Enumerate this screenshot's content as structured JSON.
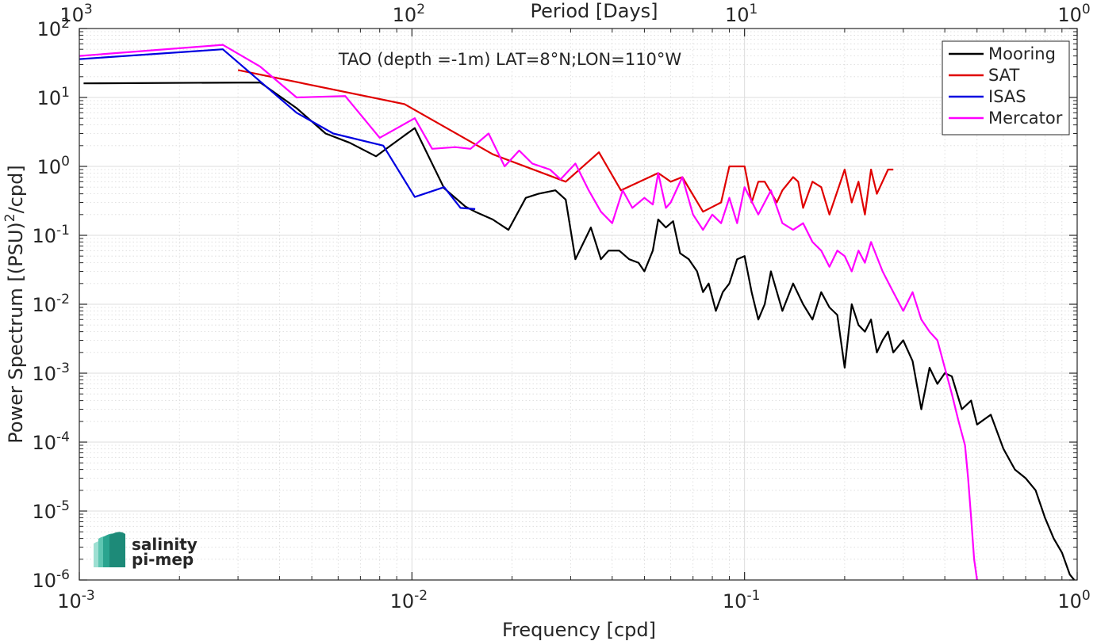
{
  "chart_data": {
    "type": "line",
    "title": "TAO (depth =-1m) LAT=8°N;LON=110°W",
    "xlabel": "Frequency [cpd]",
    "ylabel_main": "Power Spectrum [(PSU)",
    "ylabel_sup": "2",
    "ylabel_tail": "/cpd]",
    "top_xlabel": "Period [Days]",
    "xscale": "log",
    "yscale": "log",
    "xlim": [
      0.001,
      1
    ],
    "ylim": [
      1e-06,
      100
    ],
    "grid": true,
    "legend_location": "top-right",
    "x_ticks": [
      {
        "value": 0.001,
        "base": "10",
        "exp": "-3"
      },
      {
        "value": 0.01,
        "base": "10",
        "exp": "-2"
      },
      {
        "value": 0.1,
        "base": "10",
        "exp": "-1"
      },
      {
        "value": 1,
        "base": "10",
        "exp": "0"
      }
    ],
    "top_ticks": [
      {
        "value": 0.001,
        "base": "10",
        "exp": "3"
      },
      {
        "value": 0.01,
        "base": "10",
        "exp": "2"
      },
      {
        "value": 0.1,
        "base": "10",
        "exp": "1"
      },
      {
        "value": 1,
        "base": "10",
        "exp": "0"
      }
    ],
    "y_ticks": [
      {
        "value": 100,
        "base": "10",
        "exp": "2"
      },
      {
        "value": 10,
        "base": "10",
        "exp": "1"
      },
      {
        "value": 1,
        "base": "10",
        "exp": "0"
      },
      {
        "value": 0.1,
        "base": "10",
        "exp": "-1"
      },
      {
        "value": 0.01,
        "base": "10",
        "exp": "-2"
      },
      {
        "value": 0.001,
        "base": "10",
        "exp": "-3"
      },
      {
        "value": 0.0001,
        "base": "10",
        "exp": "-4"
      },
      {
        "value": 1e-05,
        "base": "10",
        "exp": "-5"
      },
      {
        "value": 1e-06,
        "base": "10",
        "exp": "-6"
      }
    ],
    "series": [
      {
        "name": "Mooring",
        "color": "#000000",
        "points": [
          [
            0.00103,
            16
          ],
          [
            0.0035,
            16.5
          ],
          [
            0.0045,
            7
          ],
          [
            0.0055,
            3
          ],
          [
            0.0065,
            2.2
          ],
          [
            0.0078,
            1.4
          ],
          [
            0.0085,
            1.9
          ],
          [
            0.0102,
            3.6
          ],
          [
            0.0125,
            0.48
          ],
          [
            0.0145,
            0.26
          ],
          [
            0.0155,
            0.22
          ],
          [
            0.0175,
            0.17
          ],
          [
            0.0195,
            0.12
          ],
          [
            0.022,
            0.35
          ],
          [
            0.024,
            0.4
          ],
          [
            0.027,
            0.45
          ],
          [
            0.029,
            0.33
          ],
          [
            0.031,
            0.045
          ],
          [
            0.0345,
            0.13
          ],
          [
            0.037,
            0.045
          ],
          [
            0.039,
            0.06
          ],
          [
            0.042,
            0.06
          ],
          [
            0.045,
            0.045
          ],
          [
            0.048,
            0.04
          ],
          [
            0.05,
            0.03
          ],
          [
            0.053,
            0.06
          ],
          [
            0.055,
            0.17
          ],
          [
            0.058,
            0.13
          ],
          [
            0.061,
            0.16
          ],
          [
            0.064,
            0.055
          ],
          [
            0.068,
            0.045
          ],
          [
            0.072,
            0.03
          ],
          [
            0.075,
            0.015
          ],
          [
            0.078,
            0.02
          ],
          [
            0.082,
            0.008
          ],
          [
            0.086,
            0.015
          ],
          [
            0.09,
            0.02
          ],
          [
            0.095,
            0.045
          ],
          [
            0.1,
            0.05
          ],
          [
            0.105,
            0.015
          ],
          [
            0.11,
            0.006
          ],
          [
            0.115,
            0.01
          ],
          [
            0.12,
            0.03
          ],
          [
            0.13,
            0.008
          ],
          [
            0.14,
            0.02
          ],
          [
            0.15,
            0.01
          ],
          [
            0.16,
            0.006
          ],
          [
            0.17,
            0.015
          ],
          [
            0.18,
            0.009
          ],
          [
            0.19,
            0.007
          ],
          [
            0.2,
            0.0012
          ],
          [
            0.21,
            0.01
          ],
          [
            0.22,
            0.005
          ],
          [
            0.23,
            0.004
          ],
          [
            0.24,
            0.006
          ],
          [
            0.25,
            0.002
          ],
          [
            0.26,
            0.003
          ],
          [
            0.27,
            0.004
          ],
          [
            0.28,
            0.002
          ],
          [
            0.3,
            0.003
          ],
          [
            0.32,
            0.0015
          ],
          [
            0.34,
            0.0003
          ],
          [
            0.36,
            0.0012
          ],
          [
            0.38,
            0.0007
          ],
          [
            0.4,
            0.001
          ],
          [
            0.42,
            0.0009
          ],
          [
            0.45,
            0.0003
          ],
          [
            0.48,
            0.0004
          ],
          [
            0.5,
            0.00018
          ],
          [
            0.55,
            0.00025
          ],
          [
            0.6,
            8e-05
          ],
          [
            0.65,
            4e-05
          ],
          [
            0.7,
            3e-05
          ],
          [
            0.75,
            2e-05
          ],
          [
            0.8,
            8e-06
          ],
          [
            0.85,
            4e-06
          ],
          [
            0.9,
            2.5e-06
          ],
          [
            0.95,
            1.2e-06
          ],
          [
            0.98,
            1e-06
          ]
        ]
      },
      {
        "name": "SAT",
        "color": "#e00000",
        "points": [
          [
            0.003,
            25
          ],
          [
            0.0095,
            8
          ],
          [
            0.0175,
            1.5
          ],
          [
            0.029,
            0.6
          ],
          [
            0.0365,
            1.6
          ],
          [
            0.0425,
            0.45
          ],
          [
            0.055,
            0.8
          ],
          [
            0.06,
            0.6
          ],
          [
            0.065,
            0.7
          ],
          [
            0.075,
            0.22
          ],
          [
            0.085,
            0.3
          ],
          [
            0.09,
            1
          ],
          [
            0.095,
            1
          ],
          [
            0.1,
            1
          ],
          [
            0.105,
            0.3
          ],
          [
            0.11,
            0.6
          ],
          [
            0.115,
            0.6
          ],
          [
            0.125,
            0.3
          ],
          [
            0.13,
            0.45
          ],
          [
            0.14,
            0.7
          ],
          [
            0.145,
            0.6
          ],
          [
            0.15,
            0.25
          ],
          [
            0.16,
            0.6
          ],
          [
            0.17,
            0.5
          ],
          [
            0.18,
            0.2
          ],
          [
            0.2,
            0.9
          ],
          [
            0.21,
            0.3
          ],
          [
            0.22,
            0.6
          ],
          [
            0.23,
            0.2
          ],
          [
            0.24,
            0.9
          ],
          [
            0.25,
            0.4
          ],
          [
            0.27,
            0.9
          ],
          [
            0.28,
            0.9
          ]
        ]
      },
      {
        "name": "ISAS",
        "color": "#0000e0",
        "points": [
          [
            0.001,
            36
          ],
          [
            0.0027,
            50
          ],
          [
            0.0045,
            6
          ],
          [
            0.0058,
            3
          ],
          [
            0.0082,
            2
          ],
          [
            0.0102,
            0.36
          ],
          [
            0.0125,
            0.5
          ],
          [
            0.014,
            0.25
          ],
          [
            0.0155,
            0.24
          ]
        ]
      },
      {
        "name": "Mercator",
        "color": "#ff00ff",
        "points": [
          [
            0.001,
            40
          ],
          [
            0.0027,
            58
          ],
          [
            0.0035,
            28
          ],
          [
            0.0045,
            10
          ],
          [
            0.0063,
            10.5
          ],
          [
            0.008,
            2.6
          ],
          [
            0.0102,
            5
          ],
          [
            0.0115,
            1.8
          ],
          [
            0.0135,
            1.9
          ],
          [
            0.015,
            1.8
          ],
          [
            0.017,
            3
          ],
          [
            0.019,
            1
          ],
          [
            0.021,
            1.7
          ],
          [
            0.023,
            1.1
          ],
          [
            0.026,
            0.9
          ],
          [
            0.028,
            0.65
          ],
          [
            0.031,
            1.1
          ],
          [
            0.034,
            0.45
          ],
          [
            0.037,
            0.22
          ],
          [
            0.04,
            0.15
          ],
          [
            0.043,
            0.45
          ],
          [
            0.046,
            0.25
          ],
          [
            0.05,
            0.35
          ],
          [
            0.053,
            0.28
          ],
          [
            0.055,
            0.8
          ],
          [
            0.058,
            0.25
          ],
          [
            0.06,
            0.3
          ],
          [
            0.065,
            0.7
          ],
          [
            0.07,
            0.2
          ],
          [
            0.075,
            0.12
          ],
          [
            0.08,
            0.2
          ],
          [
            0.085,
            0.15
          ],
          [
            0.09,
            0.35
          ],
          [
            0.095,
            0.15
          ],
          [
            0.1,
            0.5
          ],
          [
            0.11,
            0.2
          ],
          [
            0.12,
            0.45
          ],
          [
            0.13,
            0.15
          ],
          [
            0.14,
            0.12
          ],
          [
            0.15,
            0.15
          ],
          [
            0.16,
            0.08
          ],
          [
            0.17,
            0.06
          ],
          [
            0.18,
            0.035
          ],
          [
            0.19,
            0.06
          ],
          [
            0.2,
            0.05
          ],
          [
            0.21,
            0.03
          ],
          [
            0.22,
            0.06
          ],
          [
            0.23,
            0.04
          ],
          [
            0.24,
            0.08
          ],
          [
            0.26,
            0.03
          ],
          [
            0.28,
            0.015
          ],
          [
            0.3,
            0.008
          ],
          [
            0.32,
            0.015
          ],
          [
            0.34,
            0.006
          ],
          [
            0.36,
            0.004
          ],
          [
            0.38,
            0.003
          ],
          [
            0.4,
            0.0012
          ],
          [
            0.42,
            0.0005
          ],
          [
            0.44,
            0.0002
          ],
          [
            0.46,
            9e-05
          ],
          [
            0.47,
            3e-05
          ],
          [
            0.48,
            8e-06
          ],
          [
            0.49,
            2e-06
          ],
          [
            0.5,
            1e-06
          ]
        ]
      }
    ]
  },
  "logo": {
    "line1": "salinity",
    "line2": "pi-mep",
    "color": "#1a9e8a"
  }
}
